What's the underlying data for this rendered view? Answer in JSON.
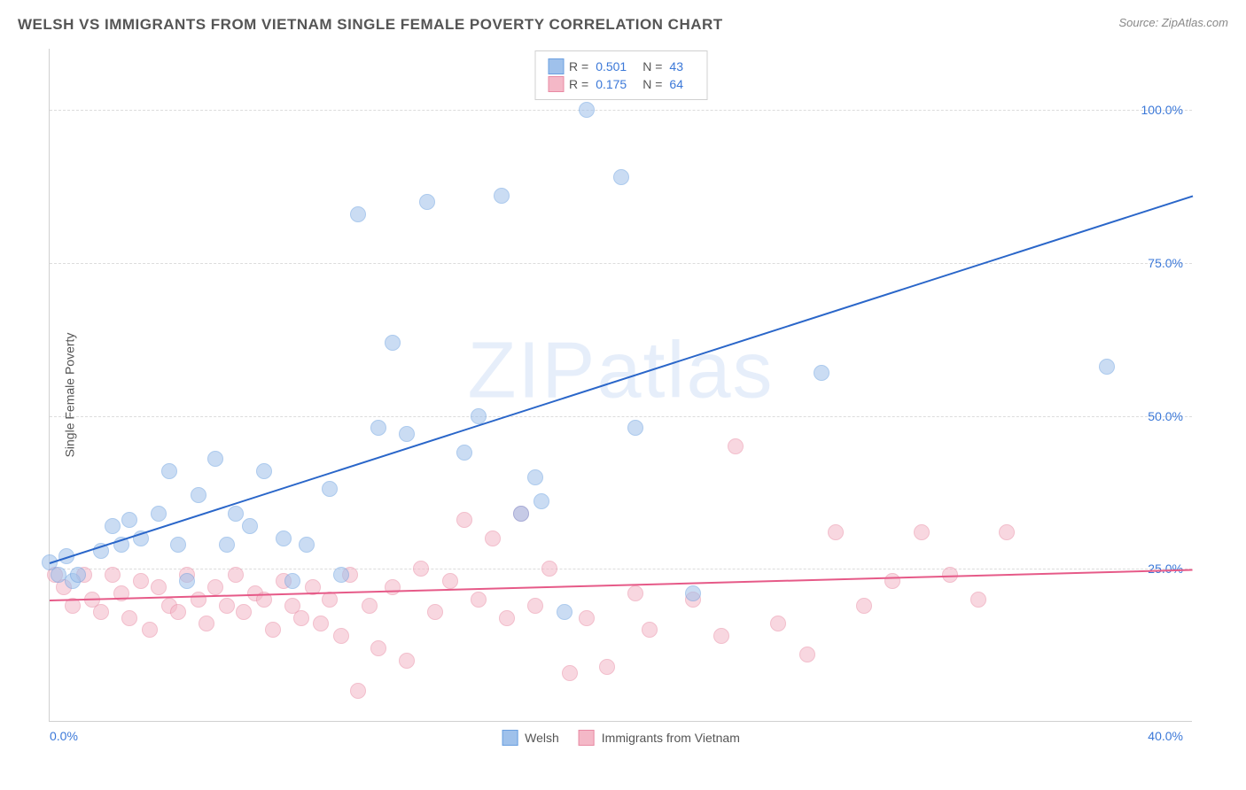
{
  "title": "WELSH VS IMMIGRANTS FROM VIETNAM SINGLE FEMALE POVERTY CORRELATION CHART",
  "source_label": "Source: ",
  "source_value": "ZipAtlas.com",
  "y_axis_label": "Single Female Poverty",
  "watermark": "ZIPatlas",
  "chart": {
    "type": "scatter",
    "xlim": [
      0,
      40
    ],
    "ylim": [
      0,
      110
    ],
    "y_ticks": [
      25,
      50,
      75,
      100
    ],
    "y_tick_labels": [
      "25.0%",
      "50.0%",
      "75.0%",
      "100.0%"
    ],
    "x_tick_labels": [
      "0.0%",
      "40.0%"
    ],
    "background_color": "#ffffff",
    "grid_color": "#dcdcdc",
    "marker_radius": 9,
    "marker_opacity": 0.55,
    "line_width": 2
  },
  "series": {
    "welsh": {
      "label": "Welsh",
      "color_fill": "#9fc1eb",
      "color_stroke": "#6a9fe0",
      "line_color": "#2a66c9",
      "R": "0.501",
      "N": "43",
      "trend": {
        "x1": 0,
        "y1": 26,
        "x2": 40,
        "y2": 86
      },
      "points": [
        [
          0.0,
          26
        ],
        [
          0.3,
          24
        ],
        [
          0.6,
          27
        ],
        [
          0.8,
          23
        ],
        [
          1.0,
          24
        ],
        [
          1.8,
          28
        ],
        [
          2.2,
          32
        ],
        [
          2.5,
          29
        ],
        [
          2.8,
          33
        ],
        [
          3.2,
          30
        ],
        [
          3.8,
          34
        ],
        [
          4.2,
          41
        ],
        [
          4.5,
          29
        ],
        [
          4.8,
          23
        ],
        [
          5.2,
          37
        ],
        [
          5.8,
          43
        ],
        [
          6.2,
          29
        ],
        [
          6.5,
          34
        ],
        [
          7.0,
          32
        ],
        [
          7.5,
          41
        ],
        [
          8.2,
          30
        ],
        [
          8.5,
          23
        ],
        [
          9.0,
          29
        ],
        [
          9.8,
          38
        ],
        [
          10.2,
          24
        ],
        [
          10.8,
          83
        ],
        [
          11.5,
          48
        ],
        [
          12.0,
          62
        ],
        [
          12.5,
          47
        ],
        [
          13.2,
          85
        ],
        [
          14.5,
          44
        ],
        [
          15.0,
          50
        ],
        [
          15.8,
          86
        ],
        [
          16.5,
          34
        ],
        [
          17.0,
          40
        ],
        [
          17.2,
          36
        ],
        [
          18.0,
          18
        ],
        [
          18.8,
          100
        ],
        [
          20.0,
          89
        ],
        [
          20.5,
          48
        ],
        [
          22.5,
          21
        ],
        [
          27.0,
          57
        ],
        [
          37.0,
          58
        ]
      ]
    },
    "vietnam": {
      "label": "Immigrants from Vietnam",
      "color_fill": "#f4b8c7",
      "color_stroke": "#e88aa3",
      "line_color": "#e65a88",
      "R": "0.175",
      "N": "64",
      "trend": {
        "x1": 0,
        "y1": 20,
        "x2": 40,
        "y2": 25
      },
      "points": [
        [
          0.2,
          24
        ],
        [
          0.5,
          22
        ],
        [
          0.8,
          19
        ],
        [
          1.2,
          24
        ],
        [
          1.5,
          20
        ],
        [
          1.8,
          18
        ],
        [
          2.2,
          24
        ],
        [
          2.5,
          21
        ],
        [
          2.8,
          17
        ],
        [
          3.2,
          23
        ],
        [
          3.5,
          15
        ],
        [
          3.8,
          22
        ],
        [
          4.2,
          19
        ],
        [
          4.5,
          18
        ],
        [
          4.8,
          24
        ],
        [
          5.2,
          20
        ],
        [
          5.5,
          16
        ],
        [
          5.8,
          22
        ],
        [
          6.2,
          19
        ],
        [
          6.5,
          24
        ],
        [
          6.8,
          18
        ],
        [
          7.2,
          21
        ],
        [
          7.5,
          20
        ],
        [
          7.8,
          15
        ],
        [
          8.2,
          23
        ],
        [
          8.5,
          19
        ],
        [
          8.8,
          17
        ],
        [
          9.2,
          22
        ],
        [
          9.5,
          16
        ],
        [
          9.8,
          20
        ],
        [
          10.2,
          14
        ],
        [
          10.5,
          24
        ],
        [
          10.8,
          5
        ],
        [
          11.2,
          19
        ],
        [
          11.5,
          12
        ],
        [
          12.0,
          22
        ],
        [
          12.5,
          10
        ],
        [
          13.0,
          25
        ],
        [
          13.5,
          18
        ],
        [
          14.0,
          23
        ],
        [
          14.5,
          33
        ],
        [
          15.0,
          20
        ],
        [
          15.5,
          30
        ],
        [
          16.0,
          17
        ],
        [
          16.5,
          34
        ],
        [
          17.0,
          19
        ],
        [
          17.5,
          25
        ],
        [
          18.2,
          8
        ],
        [
          18.8,
          17
        ],
        [
          19.5,
          9
        ],
        [
          20.5,
          21
        ],
        [
          21.0,
          15
        ],
        [
          22.5,
          20
        ],
        [
          23.5,
          14
        ],
        [
          24.0,
          45
        ],
        [
          25.5,
          16
        ],
        [
          26.5,
          11
        ],
        [
          27.5,
          31
        ],
        [
          28.5,
          19
        ],
        [
          29.5,
          23
        ],
        [
          30.5,
          31
        ],
        [
          31.5,
          24
        ],
        [
          32.5,
          20
        ],
        [
          33.5,
          31
        ]
      ]
    }
  },
  "legend_top": {
    "R_label": "R =",
    "N_label": "N ="
  }
}
